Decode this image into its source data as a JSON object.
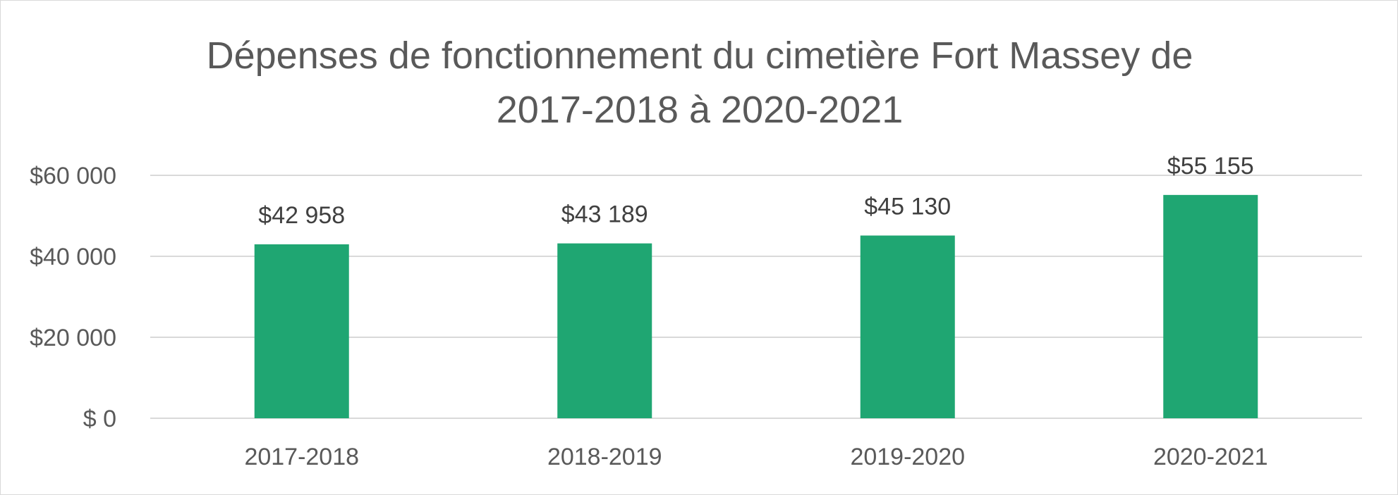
{
  "chart_data": {
    "type": "bar",
    "title_lines": [
      "Dépenses de fonctionnement du cimetière Fort Massey de",
      "2017-2018 à 2020-2021"
    ],
    "categories": [
      "2017-2018",
      "2018-2019",
      "2019-2020",
      "2020-2021"
    ],
    "values": [
      42958,
      43189,
      45130,
      55155
    ],
    "data_labels": [
      "$42 958",
      "$43 189",
      "$45 130",
      "$55 155"
    ],
    "y_ticks": [
      0,
      20000,
      40000,
      60000
    ],
    "y_tick_labels": [
      "$ 0",
      "$20 000",
      "$40 000",
      "$60 000"
    ],
    "ylim": [
      0,
      60000
    ],
    "grid": true,
    "legend": false,
    "colors": {
      "bar": "#1fa672",
      "gridline": "#d9d9d9",
      "text": "#595959"
    }
  }
}
